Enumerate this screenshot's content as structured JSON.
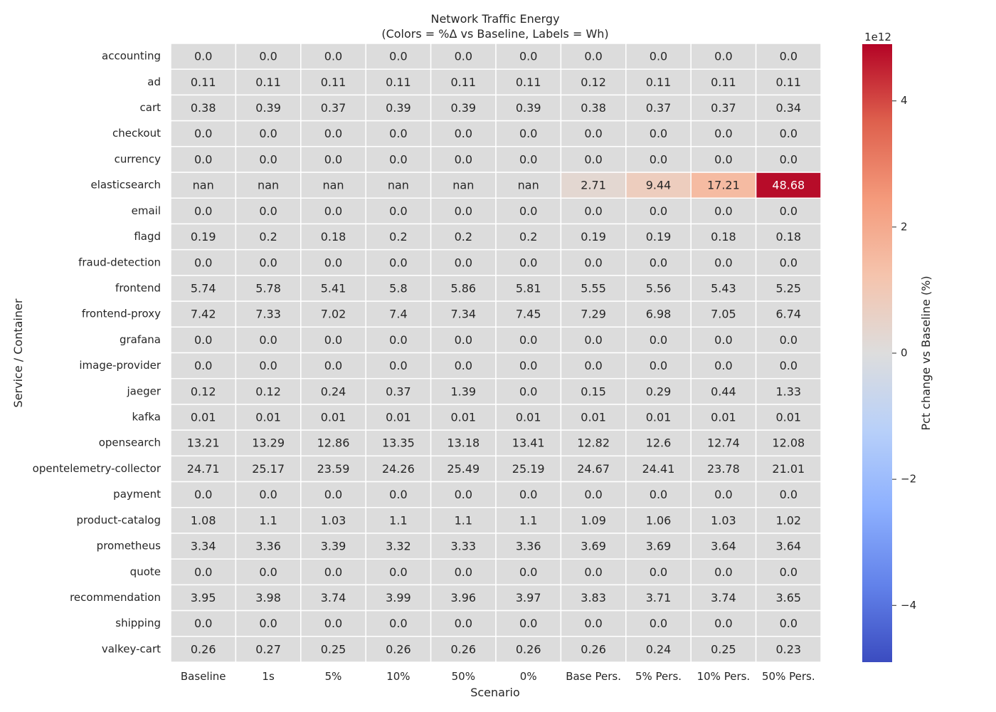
{
  "chart_data": {
    "type": "heatmap",
    "title_line1": "Network Traffic Energy",
    "title_line2": "(Colors = %Δ vs Baseline, Labels = Wh)",
    "xlabel": "Scenario",
    "ylabel": "Service / Container",
    "columns": [
      "Baseline",
      "1s",
      "5%",
      "10%",
      "50%",
      "0%",
      "Base Pers.",
      "5% Pers.",
      "10% Pers.",
      "50% Pers."
    ],
    "rows": [
      "accounting",
      "ad",
      "cart",
      "checkout",
      "currency",
      "elasticsearch",
      "email",
      "flagd",
      "fraud-detection",
      "frontend",
      "frontend-proxy",
      "grafana",
      "image-provider",
      "jaeger",
      "kafka",
      "opensearch",
      "opentelemetry-collector",
      "payment",
      "product-catalog",
      "prometheus",
      "quote",
      "recommendation",
      "shipping",
      "valkey-cart"
    ],
    "labels": [
      [
        "0.0",
        "0.0",
        "0.0",
        "0.0",
        "0.0",
        "0.0",
        "0.0",
        "0.0",
        "0.0",
        "0.0"
      ],
      [
        "0.11",
        "0.11",
        "0.11",
        "0.11",
        "0.11",
        "0.11",
        "0.12",
        "0.11",
        "0.11",
        "0.11"
      ],
      [
        "0.38",
        "0.39",
        "0.37",
        "0.39",
        "0.39",
        "0.39",
        "0.38",
        "0.37",
        "0.37",
        "0.34"
      ],
      [
        "0.0",
        "0.0",
        "0.0",
        "0.0",
        "0.0",
        "0.0",
        "0.0",
        "0.0",
        "0.0",
        "0.0"
      ],
      [
        "0.0",
        "0.0",
        "0.0",
        "0.0",
        "0.0",
        "0.0",
        "0.0",
        "0.0",
        "0.0",
        "0.0"
      ],
      [
        "nan",
        "nan",
        "nan",
        "nan",
        "nan",
        "nan",
        "2.71",
        "9.44",
        "17.21",
        "48.68"
      ],
      [
        "0.0",
        "0.0",
        "0.0",
        "0.0",
        "0.0",
        "0.0",
        "0.0",
        "0.0",
        "0.0",
        "0.0"
      ],
      [
        "0.19",
        "0.2",
        "0.18",
        "0.2",
        "0.2",
        "0.2",
        "0.19",
        "0.19",
        "0.18",
        "0.18"
      ],
      [
        "0.0",
        "0.0",
        "0.0",
        "0.0",
        "0.0",
        "0.0",
        "0.0",
        "0.0",
        "0.0",
        "0.0"
      ],
      [
        "5.74",
        "5.78",
        "5.41",
        "5.8",
        "5.86",
        "5.81",
        "5.55",
        "5.56",
        "5.43",
        "5.25"
      ],
      [
        "7.42",
        "7.33",
        "7.02",
        "7.4",
        "7.34",
        "7.45",
        "7.29",
        "6.98",
        "7.05",
        "6.74"
      ],
      [
        "0.0",
        "0.0",
        "0.0",
        "0.0",
        "0.0",
        "0.0",
        "0.0",
        "0.0",
        "0.0",
        "0.0"
      ],
      [
        "0.0",
        "0.0",
        "0.0",
        "0.0",
        "0.0",
        "0.0",
        "0.0",
        "0.0",
        "0.0",
        "0.0"
      ],
      [
        "0.12",
        "0.12",
        "0.24",
        "0.37",
        "1.39",
        "0.0",
        "0.15",
        "0.29",
        "0.44",
        "1.33"
      ],
      [
        "0.01",
        "0.01",
        "0.01",
        "0.01",
        "0.01",
        "0.01",
        "0.01",
        "0.01",
        "0.01",
        "0.01"
      ],
      [
        "13.21",
        "13.29",
        "12.86",
        "13.35",
        "13.18",
        "13.41",
        "12.82",
        "12.6",
        "12.74",
        "12.08"
      ],
      [
        "24.71",
        "25.17",
        "23.59",
        "24.26",
        "25.49",
        "25.19",
        "24.67",
        "24.41",
        "23.78",
        "21.01"
      ],
      [
        "0.0",
        "0.0",
        "0.0",
        "0.0",
        "0.0",
        "0.0",
        "0.0",
        "0.0",
        "0.0",
        "0.0"
      ],
      [
        "1.08",
        "1.1",
        "1.03",
        "1.1",
        "1.1",
        "1.1",
        "1.09",
        "1.06",
        "1.03",
        "1.02"
      ],
      [
        "3.34",
        "3.36",
        "3.39",
        "3.32",
        "3.33",
        "3.36",
        "3.69",
        "3.69",
        "3.64",
        "3.64"
      ],
      [
        "0.0",
        "0.0",
        "0.0",
        "0.0",
        "0.0",
        "0.0",
        "0.0",
        "0.0",
        "0.0",
        "0.0"
      ],
      [
        "3.95",
        "3.98",
        "3.74",
        "3.99",
        "3.96",
        "3.97",
        "3.83",
        "3.71",
        "3.74",
        "3.65"
      ],
      [
        "0.0",
        "0.0",
        "0.0",
        "0.0",
        "0.0",
        "0.0",
        "0.0",
        "0.0",
        "0.0",
        "0.0"
      ],
      [
        "0.26",
        "0.27",
        "0.25",
        "0.26",
        "0.26",
        "0.26",
        "0.26",
        "0.24",
        "0.25",
        "0.23"
      ]
    ],
    "pct_change_rows": {
      "elasticsearch": [
        null,
        null,
        null,
        null,
        null,
        null,
        300000000000.0,
        800000000000.0,
        1500000000000.0,
        4800000000000.0
      ]
    },
    "colorbar": {
      "label": "Pct change vs Baseline (%)",
      "exponent": "1e12",
      "ticks": [
        4,
        2,
        0,
        -2,
        -4
      ],
      "tick_labels": [
        "4",
        "2",
        "0",
        "−2",
        "−4"
      ],
      "scale": 1000000000000.0,
      "vmin": -4900000000000.0,
      "vmax": 4900000000000.0,
      "colormap": "coolwarm"
    },
    "nan_color": "#dcdcdc",
    "grid": true
  }
}
